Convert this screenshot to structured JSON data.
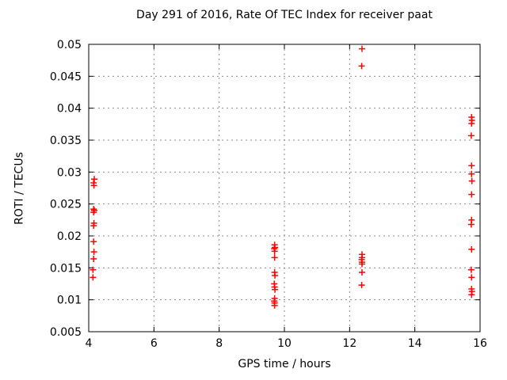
{
  "chart_data": {
    "type": "scatter",
    "title": "Day 291 of 2016, Rate Of TEC Index for receiver paat",
    "xlabel": "GPS time / hours",
    "ylabel": "ROTI / TECUs",
    "xlim": [
      4,
      16
    ],
    "ylim": [
      0.005,
      0.05
    ],
    "xticks": [
      4,
      6,
      8,
      10,
      12,
      14,
      16
    ],
    "xtick_labels": [
      "4",
      "6",
      "8",
      "10",
      "12",
      "14",
      "16"
    ],
    "yticks": [
      0.005,
      0.01,
      0.015,
      0.02,
      0.025,
      0.03,
      0.035,
      0.04,
      0.045,
      0.05
    ],
    "ytick_labels": [
      "0.005",
      "0.01",
      "0.015",
      "0.02",
      "0.025",
      "0.03",
      "0.035",
      "0.04",
      "0.045",
      "0.05"
    ],
    "grid": true,
    "legend": false,
    "marker": {
      "symbol": "plus",
      "color": "#ff0000",
      "size": 8
    },
    "colors": {
      "axis": "#000000",
      "grid": "#8c8c8c",
      "background": "#ffffff",
      "text": "#000000"
    },
    "series": [
      {
        "name": "ROTI",
        "points": [
          [
            4.17,
            0.0289
          ],
          [
            4.15,
            0.0283
          ],
          [
            4.16,
            0.0279
          ],
          [
            4.15,
            0.0242
          ],
          [
            4.17,
            0.024
          ],
          [
            4.15,
            0.0237
          ],
          [
            4.16,
            0.022
          ],
          [
            4.15,
            0.0216
          ],
          [
            4.15,
            0.0191
          ],
          [
            4.16,
            0.0175
          ],
          [
            4.15,
            0.0164
          ],
          [
            4.13,
            0.0147
          ],
          [
            4.13,
            0.0135
          ],
          [
            9.7,
            0.0186
          ],
          [
            9.71,
            0.0182
          ],
          [
            9.69,
            0.018
          ],
          [
            9.7,
            0.0176
          ],
          [
            9.7,
            0.0166
          ],
          [
            9.7,
            0.0143
          ],
          [
            9.71,
            0.0138
          ],
          [
            9.69,
            0.0125
          ],
          [
            9.7,
            0.012
          ],
          [
            9.71,
            0.0116
          ],
          [
            9.7,
            0.0102
          ],
          [
            9.69,
            0.0098
          ],
          [
            9.7,
            0.0095
          ],
          [
            9.7,
            0.0091
          ],
          [
            12.38,
            0.0493
          ],
          [
            12.37,
            0.0466
          ],
          [
            12.38,
            0.0171
          ],
          [
            12.38,
            0.0166
          ],
          [
            12.37,
            0.0163
          ],
          [
            12.38,
            0.0159
          ],
          [
            12.38,
            0.0156
          ],
          [
            12.38,
            0.0143
          ],
          [
            12.37,
            0.0123
          ],
          [
            15.74,
            0.0386
          ],
          [
            15.75,
            0.0381
          ],
          [
            15.74,
            0.0376
          ],
          [
            15.73,
            0.0357
          ],
          [
            15.74,
            0.031
          ],
          [
            15.74,
            0.0297
          ],
          [
            15.75,
            0.0286
          ],
          [
            15.74,
            0.0265
          ],
          [
            15.74,
            0.0225
          ],
          [
            15.73,
            0.0218
          ],
          [
            15.74,
            0.0179
          ],
          [
            15.73,
            0.0147
          ],
          [
            15.74,
            0.0135
          ],
          [
            15.74,
            0.0117
          ],
          [
            15.75,
            0.0113
          ],
          [
            15.74,
            0.0108
          ]
        ]
      }
    ]
  }
}
